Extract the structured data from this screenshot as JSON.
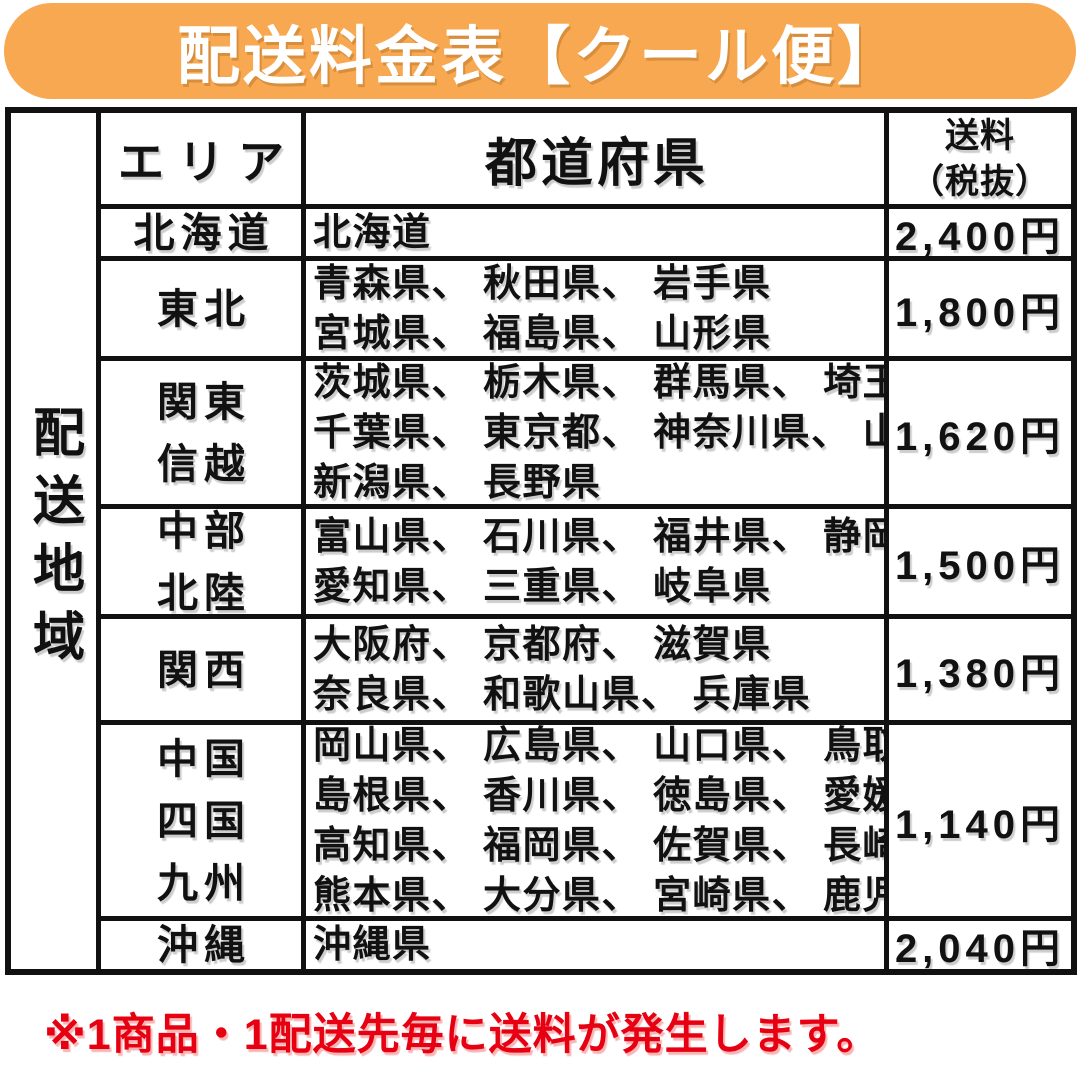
{
  "banner": {
    "title": "配送料金表【クール便】",
    "bg_color": "#f7a851",
    "text_color": "#ffffff"
  },
  "table": {
    "side_label": "配送地域",
    "headers": {
      "area": "エリア",
      "prefectures": "都道府県",
      "fee_line1": "送料",
      "fee_line2": "（税抜）"
    },
    "rows": [
      {
        "area_lines": [
          "北海道"
        ],
        "prefecture_lines": [
          "北海道"
        ],
        "fee": "2,400円"
      },
      {
        "area_lines": [
          "東北"
        ],
        "prefecture_lines": [
          "青森県、 秋田県、 岩手県",
          "宮城県、 福島県、 山形県"
        ],
        "fee": "1,800円"
      },
      {
        "area_lines": [
          "関東",
          "信越"
        ],
        "prefecture_lines": [
          "茨城県、 栃木県、 群馬県、 埼玉県",
          "千葉県、 東京都、 神奈川県、 山梨県",
          "新潟県、 長野県"
        ],
        "fee": "1,620円"
      },
      {
        "area_lines": [
          "中部",
          "北陸"
        ],
        "prefecture_lines": [
          "富山県、 石川県、 福井県、 静岡県",
          "愛知県、 三重県、 岐阜県"
        ],
        "fee": "1,500円"
      },
      {
        "area_lines": [
          "関西"
        ],
        "prefecture_lines": [
          "大阪府、 京都府、 滋賀県",
          "奈良県、 和歌山県、 兵庫県"
        ],
        "fee": "1,380円"
      },
      {
        "area_lines": [
          "中国",
          "四国",
          "九州"
        ],
        "prefecture_lines": [
          "岡山県、 広島県、 山口県、 鳥取県",
          "島根県、 香川県、 徳島県、 愛媛県",
          "高知県、 福岡県、 佐賀県、 長崎県",
          "熊本県、 大分県、 宮崎県、 鹿児島県"
        ],
        "fee": "1,140円"
      },
      {
        "area_lines": [
          "沖縄"
        ],
        "prefecture_lines": [
          "沖縄県"
        ],
        "fee": "2,040円"
      }
    ]
  },
  "footnote": {
    "text": "※1商品・1配送先毎に送料が発生します。",
    "color": "#e60012"
  }
}
